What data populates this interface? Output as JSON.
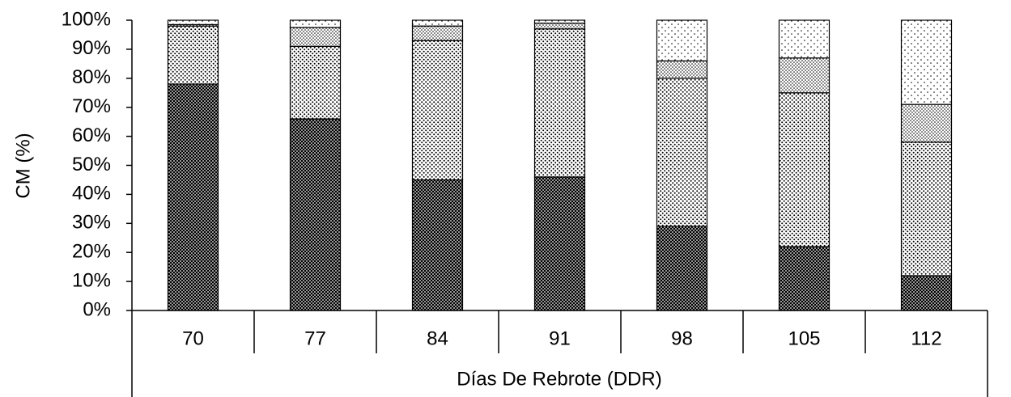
{
  "chart_data": {
    "type": "stacked_bar",
    "y_label": "CM (%)",
    "x_label": "Días De Rebrote (DDR)",
    "categories": [
      "70",
      "77",
      "84",
      "91",
      "98",
      "105",
      "112"
    ],
    "series": [
      {
        "color": "#000000",
        "values": [
          78,
          66,
          45,
          46,
          29,
          22,
          12
        ]
      },
      {
        "color": "#ffffff",
        "values": [
          20,
          25,
          48,
          51,
          51,
          53,
          46
        ]
      },
      {
        "color": "#ffffff",
        "values": [
          0.5,
          6.5,
          5,
          2,
          6,
          12,
          13
        ]
      },
      {
        "color": "#ffffff",
        "values": [
          1.5,
          2.5,
          2,
          1,
          14,
          13,
          29
        ]
      }
    ],
    "ylim": [
      0,
      100
    ],
    "yticks": [
      {
        "value": 0,
        "label": "0%"
      },
      {
        "value": 10,
        "label": "10%"
      },
      {
        "value": 20,
        "label": "20%"
      },
      {
        "value": 30,
        "label": "30%"
      },
      {
        "value": 40,
        "label": "40%"
      },
      {
        "value": 50,
        "label": "50%"
      },
      {
        "value": 60,
        "label": "60%"
      },
      {
        "value": 70,
        "label": "70%"
      },
      {
        "value": 80,
        "label": "80%"
      },
      {
        "value": 90,
        "label": "90%"
      },
      {
        "value": 100,
        "label": "100%"
      }
    ]
  }
}
